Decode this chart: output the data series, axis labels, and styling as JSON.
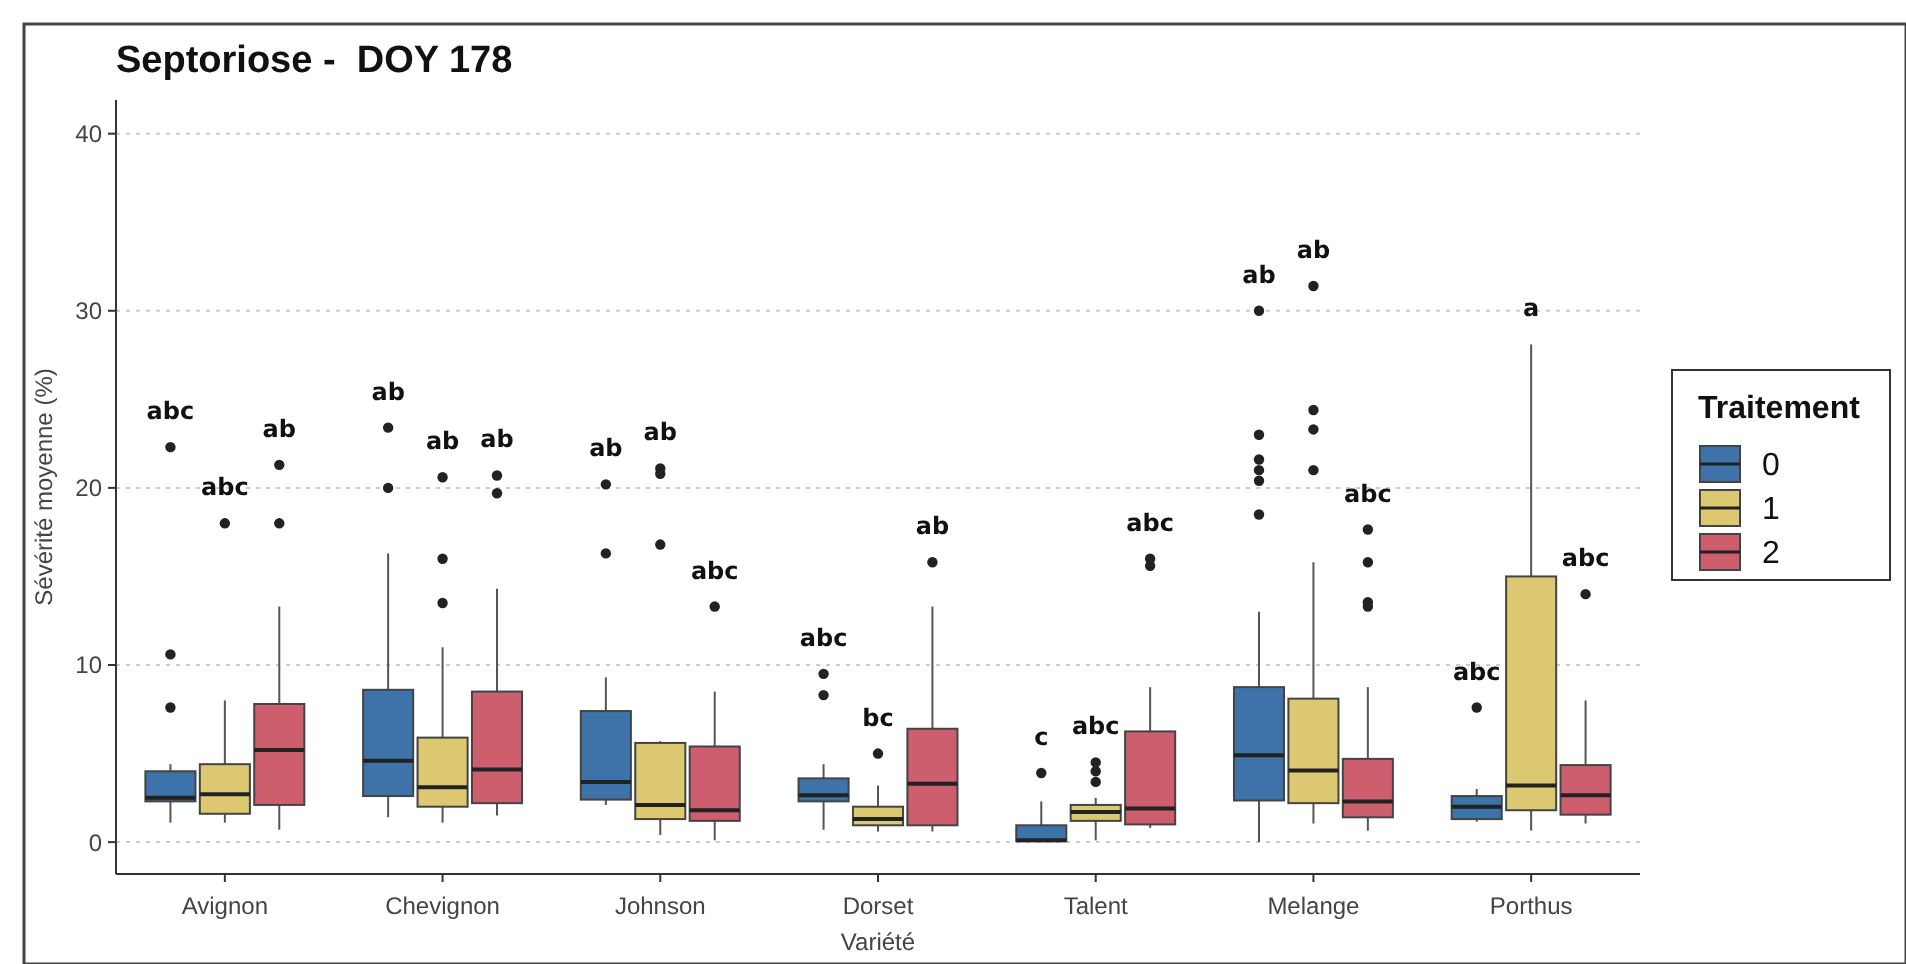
{
  "chart_data": {
    "type": "box",
    "title": "Septoriose -  DOY 178",
    "xlabel": "Variété",
    "ylabel": "Sévérité moyenne (%)",
    "legend_title": "Traitement",
    "legend": "right",
    "grid": "y",
    "categories": [
      "Avignon",
      "Chevignon",
      "Johnson",
      "Dorset",
      "Talent",
      "Melange",
      "Porthus"
    ],
    "ylim": [
      -1.8,
      41.9
    ],
    "yticks": [
      0,
      10,
      20,
      30,
      40
    ],
    "series": [
      {
        "name": "0",
        "color": "#3d73a9",
        "boxes": [
          {
            "low": 1.1,
            "q1": 2.3,
            "median": 2.5,
            "q3": 4.0,
            "high": 4.4,
            "outliers": [
              7.6,
              10.6,
              22.3
            ]
          },
          {
            "low": 1.4,
            "q1": 2.6,
            "median": 4.6,
            "q3": 8.6,
            "high": 16.3,
            "outliers": [
              20,
              23.4
            ]
          },
          {
            "low": 2.1,
            "q1": 2.4,
            "median": 3.4,
            "q3": 7.4,
            "high": 9.3,
            "outliers": [
              16.3,
              20.2
            ]
          },
          {
            "low": 0.7,
            "q1": 2.3,
            "median": 2.65,
            "q3": 3.6,
            "high": 4.4,
            "outliers": [
              8.3,
              9.5
            ]
          },
          {
            "low": 0,
            "q1": 0.05,
            "median": 0.1,
            "q3": 0.95,
            "high": 2.3,
            "outliers": [
              3.9
            ]
          },
          {
            "low": 0,
            "q1": 2.35,
            "median": 4.9,
            "q3": 8.75,
            "high": 13.0,
            "outliers": [
              18.5,
              20.4,
              21.0,
              21.6,
              23.0,
              30.0
            ]
          },
          {
            "low": 1.15,
            "q1": 1.3,
            "median": 2.0,
            "q3": 2.6,
            "high": 3.0,
            "outliers": [
              7.6
            ]
          }
        ]
      },
      {
        "name": "1",
        "color": "#dbc870",
        "boxes": [
          {
            "low": 1.1,
            "q1": 1.6,
            "median": 2.7,
            "q3": 4.4,
            "high": 8.0,
            "outliers": [
              18
            ]
          },
          {
            "low": 1.1,
            "q1": 2.0,
            "median": 3.1,
            "q3": 5.9,
            "high": 11.0,
            "outliers": [
              13.5,
              16,
              20.6
            ]
          },
          {
            "low": 0.4,
            "q1": 1.3,
            "median": 2.1,
            "q3": 5.6,
            "high": 5.7,
            "outliers": [
              16.8,
              20.8,
              21.1
            ]
          },
          {
            "low": 0.6,
            "q1": 0.95,
            "median": 1.3,
            "q3": 2.0,
            "high": 3.2,
            "outliers": [
              5.0
            ]
          },
          {
            "low": 0.1,
            "q1": 1.2,
            "median": 1.7,
            "q3": 2.1,
            "high": 2.5,
            "outliers": [
              3.4,
              4.0,
              4.5
            ]
          },
          {
            "low": 1.05,
            "q1": 2.2,
            "median": 4.05,
            "q3": 8.1,
            "high": 15.8,
            "outliers": [
              21.0,
              23.3,
              24.4,
              31.4
            ]
          },
          {
            "low": 0.65,
            "q1": 1.8,
            "median": 3.2,
            "q3": 15.0,
            "high": 28.1
          }
        ]
      },
      {
        "name": "2",
        "color": "#cd5e6e",
        "boxes": [
          {
            "low": 0.7,
            "q1": 2.1,
            "median": 5.2,
            "q3": 7.8,
            "high": 13.3,
            "outliers": [
              18,
              21.3
            ]
          },
          {
            "low": 1.5,
            "q1": 2.2,
            "median": 4.1,
            "q3": 8.5,
            "high": 14.3,
            "outliers": [
              19.7,
              20.7
            ]
          },
          {
            "low": 0.1,
            "q1": 1.2,
            "median": 1.8,
            "q3": 5.4,
            "high": 8.5,
            "outliers": [
              13.3
            ]
          },
          {
            "low": 0.6,
            "q1": 0.95,
            "median": 3.3,
            "q3": 6.4,
            "high": 13.3,
            "outliers": [
              15.8
            ]
          },
          {
            "low": 0.8,
            "q1": 1.0,
            "median": 1.9,
            "q3": 6.25,
            "high": 8.75,
            "outliers": [
              15.6,
              16.0
            ]
          },
          {
            "low": 0.65,
            "q1": 1.4,
            "median": 2.3,
            "q3": 4.7,
            "high": 8.75,
            "outliers": [
              13.3,
              13.55,
              15.8,
              17.65
            ]
          },
          {
            "low": 1.05,
            "q1": 1.55,
            "median": 2.65,
            "q3": 4.35,
            "high": 8.0,
            "outliers": [
              14.0
            ]
          }
        ]
      }
    ],
    "annotations": [
      "abc",
      "abc",
      "ab",
      "ab",
      "ab",
      "ab",
      "ab",
      "ab",
      "abc",
      "abc",
      "bc",
      "ab",
      "c",
      "abc",
      "abc",
      "ab",
      "ab",
      "abc",
      "abc",
      "a",
      "abc"
    ]
  }
}
